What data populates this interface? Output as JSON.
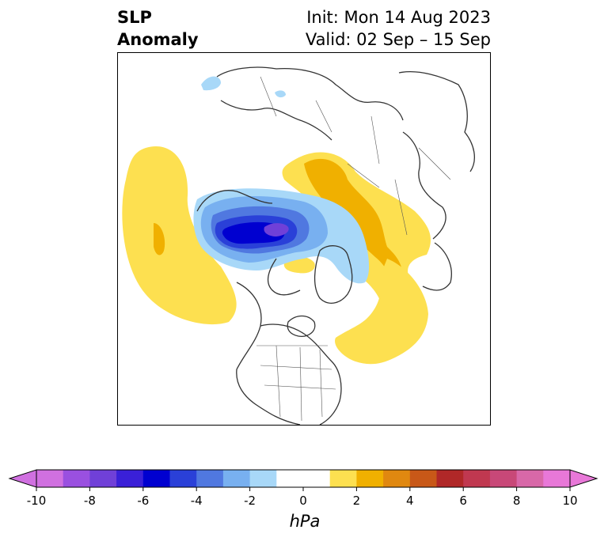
{
  "title": {
    "left_lines": [
      "SLP",
      "Anomaly"
    ],
    "right_lines": [
      "Init: Mon 14 Aug 2023",
      "Valid: 02 Sep – 15 Sep"
    ]
  },
  "colorbar": {
    "label": "hPa",
    "ticks": [
      "-10",
      "-8",
      "-6",
      "-4",
      "-2",
      "0",
      "2",
      "4",
      "6",
      "8",
      "10"
    ],
    "colors": [
      "#d070e0",
      "#9a50e0",
      "#7040d8",
      "#3a20d8",
      "#0000d0",
      "#2a40d8",
      "#5078e0",
      "#78b0f0",
      "#a8d8f8",
      "#ffffff",
      "#ffffff",
      "#fde050",
      "#f0b000",
      "#e08810",
      "#c85818",
      "#b02828",
      "#c03850",
      "#c84878",
      "#d868a8",
      "#e878d8"
    ]
  },
  "map": {
    "projection": "north-polar-stereographic",
    "features": {
      "negative_anomaly": "Arctic Ocean / Beaufort Sea low",
      "positive_anomaly_1": "North Pacific / Aleutian high",
      "positive_anomaly_2": "Scandinavia / Barents high",
      "positive_anomaly_3": "Western Atlantic / North America east coast high"
    },
    "colors": {
      "land_lines": "#333333",
      "strong_low": "#0000d0",
      "low": "#2a40d8",
      "mid_low": "#5078e0",
      "light_low": "#78b0f0",
      "faint_low": "#a8d8f8",
      "weak_high": "#fde050",
      "high": "#f0b000"
    }
  }
}
